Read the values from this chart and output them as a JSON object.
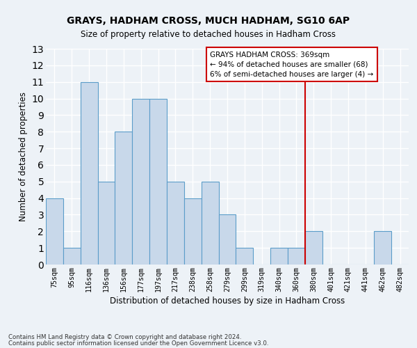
{
  "title": "GRAYS, HADHAM CROSS, MUCH HADHAM, SG10 6AP",
  "subtitle": "Size of property relative to detached houses in Hadham Cross",
  "xlabel": "Distribution of detached houses by size in Hadham Cross",
  "ylabel": "Number of detached properties",
  "categories": [
    "75sqm",
    "95sqm",
    "116sqm",
    "136sqm",
    "156sqm",
    "177sqm",
    "197sqm",
    "217sqm",
    "238sqm",
    "258sqm",
    "279sqm",
    "299sqm",
    "319sqm",
    "340sqm",
    "360sqm",
    "380sqm",
    "401sqm",
    "421sqm",
    "441sqm",
    "462sqm",
    "482sqm"
  ],
  "values": [
    4,
    1,
    11,
    5,
    8,
    10,
    10,
    5,
    4,
    5,
    3,
    1,
    0,
    1,
    1,
    2,
    0,
    0,
    0,
    2,
    0
  ],
  "bar_color": "#c8d8ea",
  "bar_edge_color": "#5b9dc9",
  "background_color": "#edf2f7",
  "fig_background_color": "#edf2f7",
  "grid_color": "#ffffff",
  "vline_x_index": 14.5,
  "vline_color": "#cc0000",
  "annotation_title": "GRAYS HADHAM CROSS: 369sqm",
  "annotation_line1": "← 94% of detached houses are smaller (68)",
  "annotation_line2": "6% of semi-detached houses are larger (4) →",
  "annotation_box_color": "#cc0000",
  "ylim": [
    0,
    13
  ],
  "yticks": [
    0,
    1,
    2,
    3,
    4,
    5,
    6,
    7,
    8,
    9,
    10,
    11,
    12,
    13
  ],
  "footnote1": "Contains HM Land Registry data © Crown copyright and database right 2024.",
  "footnote2": "Contains public sector information licensed under the Open Government Licence v3.0."
}
